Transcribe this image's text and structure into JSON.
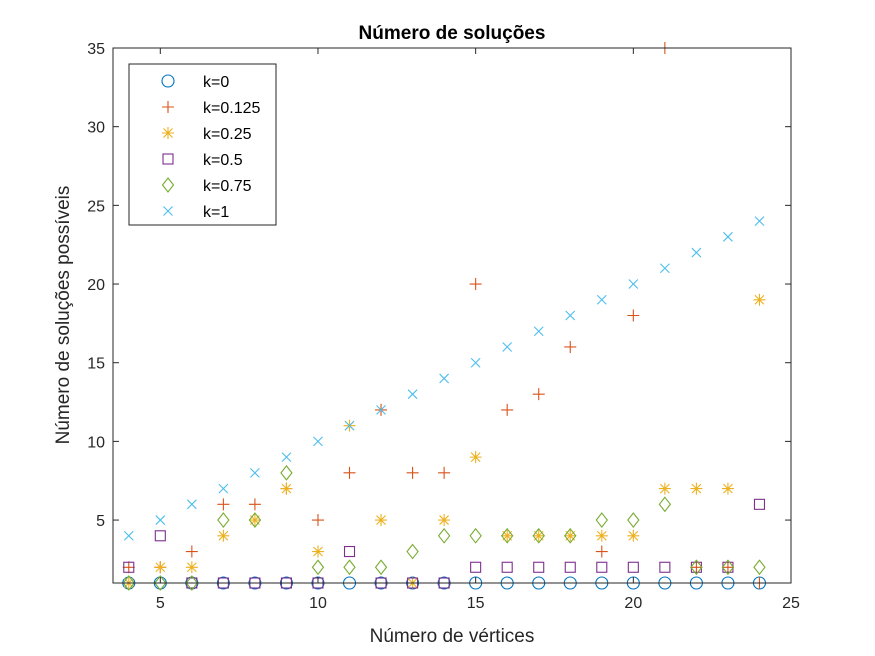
{
  "chart_data": {
    "type": "scatter",
    "title": "Número de soluções",
    "xlabel": "Número de vértices",
    "ylabel": "Número de soluções possíveis",
    "xlim": [
      3.5,
      25
    ],
    "ylim": [
      1,
      35
    ],
    "xticks": [
      5,
      10,
      15,
      20,
      25
    ],
    "yticks": [
      5,
      10,
      15,
      20,
      25,
      30,
      35
    ],
    "grid": false,
    "legend_position": "top-left",
    "series": [
      {
        "name": "k=0",
        "marker": "circle",
        "color": "#0072BD",
        "x": [
          4,
          5,
          6,
          7,
          8,
          9,
          10,
          11,
          12,
          13,
          14,
          15,
          16,
          17,
          18,
          19,
          20,
          21,
          22,
          23,
          24
        ],
        "y": [
          1,
          1,
          1,
          1,
          1,
          1,
          1,
          1,
          1,
          1,
          1,
          1,
          1,
          1,
          1,
          1,
          1,
          1,
          1,
          1,
          1
        ]
      },
      {
        "name": "k=0.125",
        "marker": "plus",
        "color": "#D95319",
        "x": [
          4,
          5,
          6,
          7,
          8,
          9,
          10,
          11,
          12,
          13,
          14,
          15,
          16,
          17,
          18,
          19,
          20,
          21,
          22,
          23,
          24
        ],
        "y": [
          2,
          2,
          3,
          6,
          6,
          7,
          5,
          8,
          12,
          8,
          8,
          20,
          12,
          13,
          16,
          3,
          18,
          35,
          2,
          2,
          1
        ]
      },
      {
        "name": "k=0.25",
        "marker": "asterisk",
        "color": "#EDB120",
        "x": [
          4,
          5,
          6,
          7,
          8,
          9,
          10,
          11,
          12,
          13,
          14,
          15,
          16,
          17,
          18,
          19,
          20,
          21,
          22,
          23,
          24
        ],
        "y": [
          1,
          2,
          2,
          4,
          5,
          7,
          3,
          11,
          5,
          1,
          5,
          9,
          4,
          4,
          4,
          4,
          4,
          7,
          7,
          7,
          19
        ]
      },
      {
        "name": "k=0.5",
        "marker": "square",
        "color": "#7E2F8E",
        "x": [
          4,
          5,
          6,
          7,
          8,
          9,
          10,
          11,
          12,
          13,
          14,
          15,
          16,
          17,
          18,
          19,
          20,
          21,
          22,
          23,
          24
        ],
        "y": [
          2,
          4,
          1,
          1,
          1,
          1,
          1,
          3,
          1,
          1,
          1,
          2,
          2,
          2,
          2,
          2,
          2,
          2,
          2,
          2,
          6
        ]
      },
      {
        "name": "k=0.75",
        "marker": "diamond",
        "color": "#77AC30",
        "x": [
          4,
          5,
          6,
          7,
          8,
          9,
          10,
          11,
          12,
          13,
          14,
          15,
          16,
          17,
          18,
          19,
          20,
          21,
          22,
          23,
          24
        ],
        "y": [
          1,
          1,
          1,
          5,
          5,
          8,
          2,
          2,
          2,
          3,
          4,
          4,
          4,
          4,
          4,
          5,
          5,
          6,
          2,
          2,
          2
        ]
      },
      {
        "name": "k=1",
        "marker": "x",
        "color": "#4DBEEE",
        "x": [
          4,
          5,
          6,
          7,
          8,
          9,
          10,
          11,
          12,
          13,
          14,
          15,
          16,
          17,
          18,
          19,
          20,
          21,
          22,
          23,
          24
        ],
        "y": [
          4,
          5,
          6,
          7,
          8,
          9,
          10,
          11,
          12,
          13,
          14,
          15,
          16,
          17,
          18,
          19,
          20,
          21,
          22,
          23,
          24
        ]
      }
    ]
  }
}
